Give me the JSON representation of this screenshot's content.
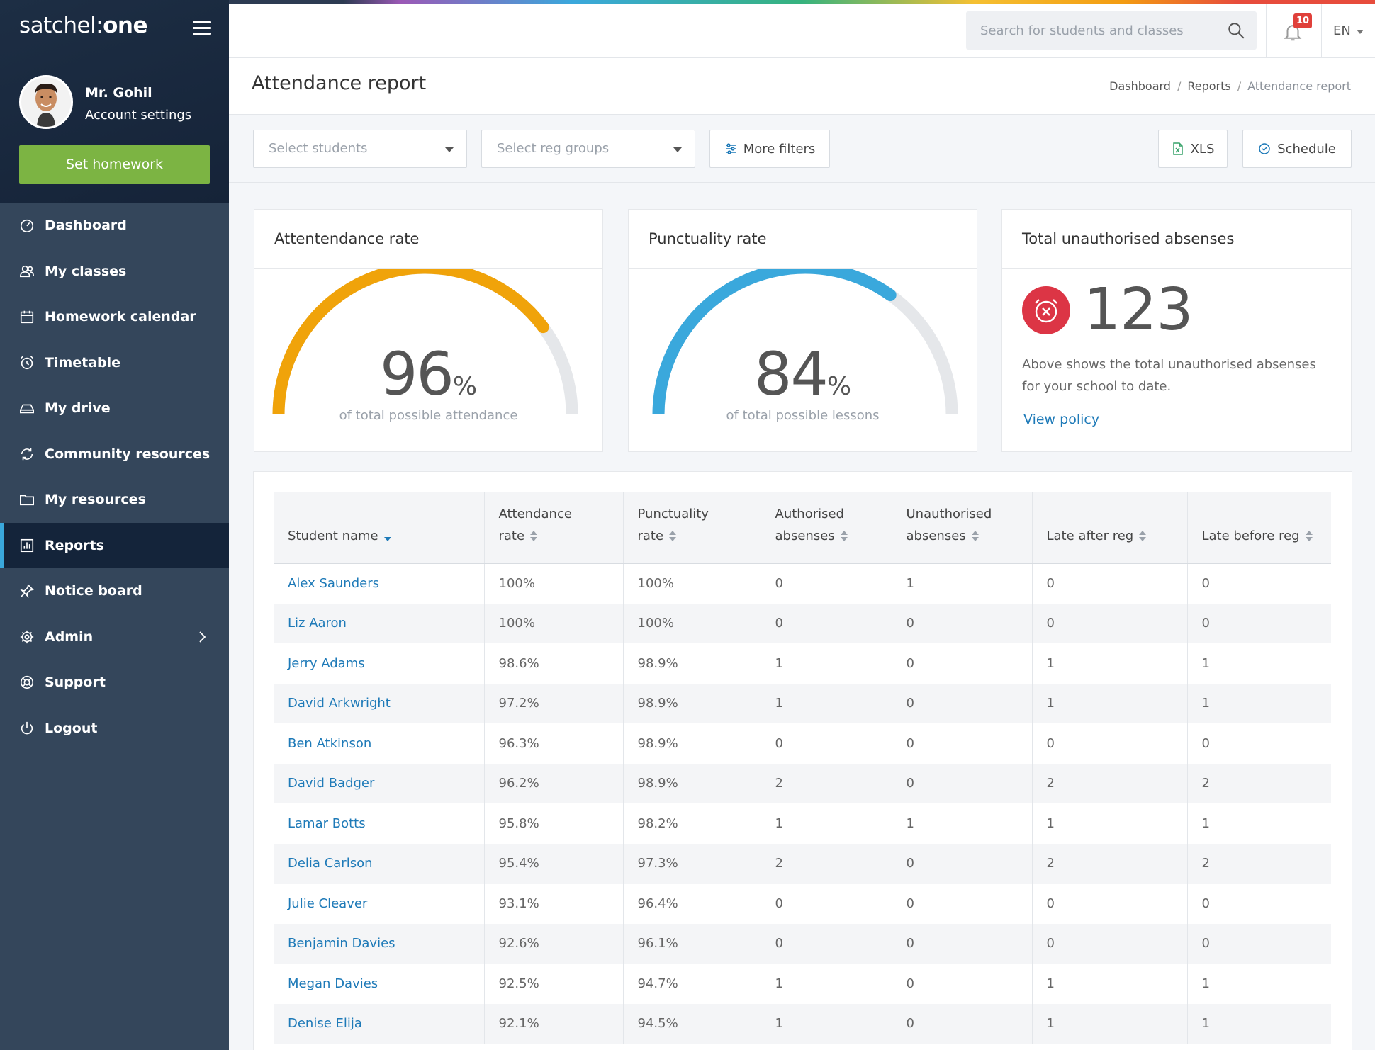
{
  "app": {
    "logo_regular": "satchel:",
    "logo_bold": "one"
  },
  "user": {
    "name": "Mr. Gohil",
    "account_settings": "Account settings"
  },
  "sidebar": {
    "set_homework": "Set homework",
    "items": [
      {
        "label": "Dashboard",
        "icon": "dashboard-icon"
      },
      {
        "label": "My classes",
        "icon": "users-icon"
      },
      {
        "label": "Homework calendar",
        "icon": "calendar-icon"
      },
      {
        "label": "Timetable",
        "icon": "alarm-clock-icon"
      },
      {
        "label": "My drive",
        "icon": "drive-icon"
      },
      {
        "label": "Community resources",
        "icon": "refresh-icon"
      },
      {
        "label": "My resources",
        "icon": "folder-icon"
      },
      {
        "label": "Reports",
        "icon": "chart-icon",
        "active": true
      },
      {
        "label": "Notice board",
        "icon": "pin-icon"
      },
      {
        "label": "Admin",
        "icon": "gear-icon",
        "has_children": true
      },
      {
        "label": "Support",
        "icon": "lifebuoy-icon"
      },
      {
        "label": "Logout",
        "icon": "power-icon"
      }
    ]
  },
  "topbar": {
    "search_placeholder": "Search for students and classes",
    "notification_count": "10",
    "language": "EN"
  },
  "page": {
    "title": "Attendance report",
    "breadcrumb": [
      "Dashboard",
      "Reports",
      "Attendance report"
    ]
  },
  "filters": {
    "students_placeholder": "Select students",
    "reg_groups_placeholder": "Select reg groups",
    "more_filters": "More filters",
    "xls": "XLS",
    "schedule": "Schedule"
  },
  "cards": {
    "attendance": {
      "title": "Attentendance rate",
      "value": "96",
      "unit": "%",
      "fraction": 0.96,
      "subtitle": "of total possible attendance",
      "color": "#f0a30a"
    },
    "punctuality": {
      "title": "Punctuality rate",
      "value": "84",
      "unit": "%",
      "fraction": 0.84,
      "subtitle": "of total possible lessons",
      "color": "#3aa8dc"
    },
    "unauthorised": {
      "title": "Total unauthorised absenses",
      "value": "123",
      "description": "Above shows the total unauthorised absenses for your school to date.",
      "link": "View policy",
      "color": "#dc3545"
    }
  },
  "table": {
    "headers": [
      [
        "Student name"
      ],
      [
        "Attendance",
        "rate"
      ],
      [
        "Punctuality",
        "rate"
      ],
      [
        "Authorised",
        "absenses"
      ],
      [
        "Unauthorised",
        "absenses"
      ],
      [
        "Late after reg"
      ],
      [
        "Late before reg"
      ]
    ],
    "rows": [
      [
        "Alex Saunders",
        "100%",
        "100%",
        "0",
        "1",
        "0",
        "0"
      ],
      [
        "Liz Aaron",
        "100%",
        "100%",
        "0",
        "0",
        "0",
        "0"
      ],
      [
        "Jerry Adams",
        "98.6%",
        "98.9%",
        "1",
        "0",
        "1",
        "1"
      ],
      [
        "David Arkwright",
        "97.2%",
        "98.9%",
        "1",
        "0",
        "1",
        "1"
      ],
      [
        "Ben Atkinson",
        "96.3%",
        "98.9%",
        "0",
        "0",
        "0",
        "0"
      ],
      [
        "David Badger",
        "96.2%",
        "98.9%",
        "2",
        "0",
        "2",
        "2"
      ],
      [
        "Lamar Botts",
        "95.8%",
        "98.2%",
        "1",
        "1",
        "1",
        "1"
      ],
      [
        "Delia Carlson",
        "95.4%",
        "97.3%",
        "2",
        "0",
        "2",
        "2"
      ],
      [
        "Julie Cleaver",
        "93.1%",
        "96.4%",
        "0",
        "0",
        "0",
        "0"
      ],
      [
        "Benjamin Davies",
        "92.6%",
        "96.1%",
        "0",
        "0",
        "0",
        "0"
      ],
      [
        "Megan Davies",
        "92.5%",
        "94.7%",
        "1",
        "0",
        "1",
        "1"
      ],
      [
        "Denise Elija",
        "92.1%",
        "94.5%",
        "1",
        "0",
        "1",
        "1"
      ]
    ]
  }
}
